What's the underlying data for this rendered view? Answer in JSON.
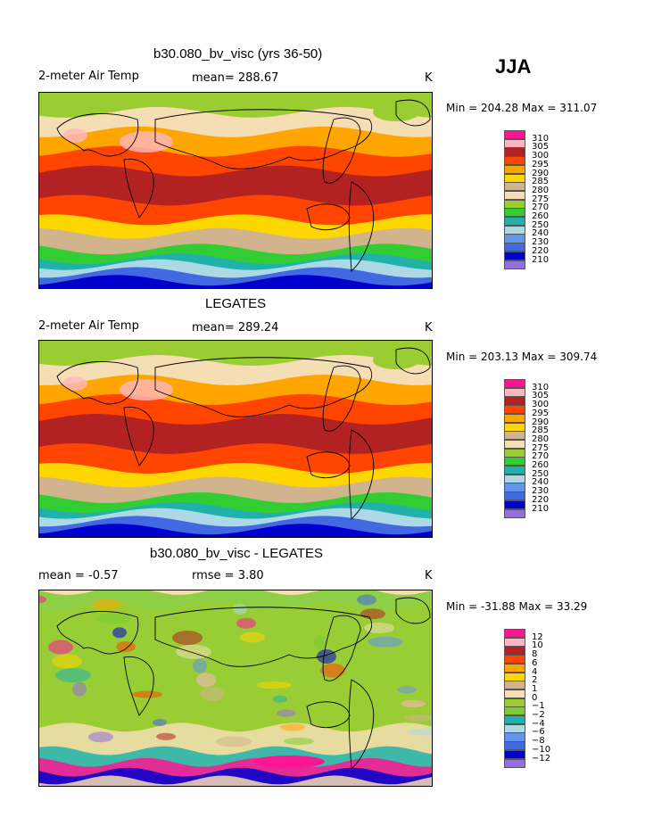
{
  "season": "JJA",
  "panels": [
    {
      "title": "b30.080_bv_visc (yrs 36-50)",
      "left_label": "2-meter Air Temp",
      "center_label": "mean= 288.67",
      "unit": "K",
      "minmax": "Min = 204.28 Max = 311.07",
      "kind": "abs"
    },
    {
      "title": "LEGATES",
      "left_label": "2-meter Air Temp",
      "center_label": "mean= 289.24",
      "unit": "K",
      "minmax": "Min = 203.13 Max = 309.74",
      "kind": "abs"
    },
    {
      "title": "b30.080_bv_visc - LEGATES",
      "left_label": "mean =   -0.57",
      "center_label": "rmse =    3.80",
      "unit": "K",
      "minmax": "Min = -31.88 Max =  33.29",
      "kind": "diff"
    }
  ],
  "chart_data": [
    {
      "type": "heatmap",
      "title": "b30.080_bv_visc (yrs 36-50)",
      "variable": "2-meter Air Temp",
      "units": "K",
      "mean": 288.67,
      "min": 204.28,
      "max": 311.07,
      "colorbar_levels": [
        310,
        305,
        300,
        295,
        290,
        285,
        280,
        275,
        270,
        260,
        250,
        240,
        230,
        220,
        210
      ],
      "colorbar_colors": [
        "#ff1493",
        "#ffb6c1",
        "#b22222",
        "#ff4500",
        "#ffa500",
        "#ffd700",
        "#d2b48c",
        "#f5deb3",
        "#9acd32",
        "#32cd32",
        "#20b2aa",
        "#add8e6",
        "#6495ed",
        "#4169e1",
        "#0000cd",
        "#9370db"
      ]
    },
    {
      "type": "heatmap",
      "title": "LEGATES",
      "variable": "2-meter Air Temp",
      "units": "K",
      "mean": 289.24,
      "min": 203.13,
      "max": 309.74,
      "colorbar_levels": [
        310,
        305,
        300,
        295,
        290,
        285,
        280,
        275,
        270,
        260,
        250,
        240,
        230,
        220,
        210
      ],
      "colorbar_colors": [
        "#ff1493",
        "#ffb6c1",
        "#b22222",
        "#ff4500",
        "#ffa500",
        "#ffd700",
        "#d2b48c",
        "#f5deb3",
        "#9acd32",
        "#32cd32",
        "#20b2aa",
        "#add8e6",
        "#6495ed",
        "#4169e1",
        "#0000cd",
        "#9370db"
      ]
    },
    {
      "type": "heatmap",
      "title": "b30.080_bv_visc - LEGATES",
      "variable": "2-meter Air Temp difference",
      "units": "K",
      "mean": -0.57,
      "rmse": 3.8,
      "min": -31.88,
      "max": 33.29,
      "colorbar_levels": [
        12,
        10,
        8,
        6,
        4,
        2,
        1,
        0,
        -1,
        -2,
        -4,
        -6,
        -8,
        -10,
        -12
      ],
      "colorbar_level_labels": [
        "12",
        "10",
        "8",
        "6",
        "4",
        "2",
        "1",
        "0",
        "−1",
        "−2",
        "−4",
        "−6",
        "−8",
        "−10",
        "−12"
      ],
      "colorbar_colors": [
        "#ff1493",
        "#ffb6c1",
        "#b22222",
        "#ff4500",
        "#ffa500",
        "#ffd700",
        "#d2b48c",
        "#f5deb3",
        "#9acd32",
        "#7ccd32",
        "#20b2aa",
        "#add8e6",
        "#6495ed",
        "#4169e1",
        "#0000cd",
        "#9370db"
      ]
    }
  ]
}
